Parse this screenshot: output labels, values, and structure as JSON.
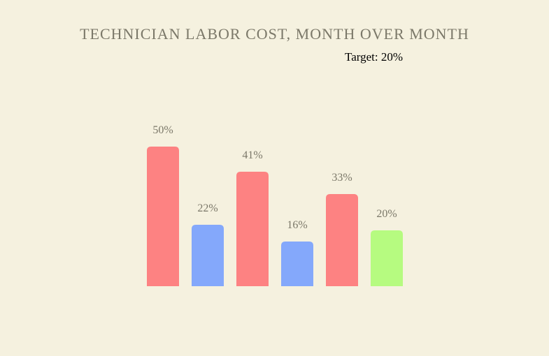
{
  "chart_data": {
    "type": "bar",
    "title": "TECHNICIAN LABOR COST, MONTH OVER MONTH",
    "annotation": "Target: 20%",
    "target": 20,
    "values": [
      50,
      22,
      41,
      16,
      33,
      20
    ],
    "value_labels": [
      "50%",
      "22%",
      "41%",
      "16%",
      "33%",
      "20%"
    ],
    "colors": [
      "#fd8282",
      "#84a8fb",
      "#fd8282",
      "#84a8fb",
      "#fd8282",
      "#b6fb80"
    ],
    "xlabel": "",
    "ylabel": "",
    "ylim": [
      0,
      50
    ],
    "grid": false,
    "legend": "none"
  }
}
